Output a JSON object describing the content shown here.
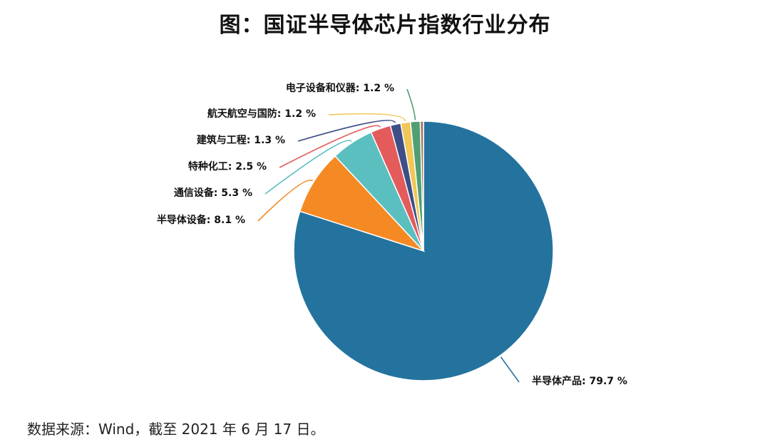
{
  "chart_data": {
    "type": "pie",
    "title": "图：国证半导体芯片指数行业分布",
    "slices": [
      {
        "name": "半导体产品",
        "value": 79.7,
        "label": "半导体产品: 79.7 %",
        "color": "#24739e"
      },
      {
        "name": "半导体设备",
        "value": 8.1,
        "label": "半导体设备: 8.1 %",
        "color": "#f58a24"
      },
      {
        "name": "通信设备",
        "value": 5.3,
        "label": "通信设备: 5.3 %",
        "color": "#5bbfc0"
      },
      {
        "name": "特种化工",
        "value": 2.5,
        "label": "特种化工: 2.5 %",
        "color": "#e35b5b"
      },
      {
        "name": "建筑与工程",
        "value": 1.3,
        "label": "建筑与工程: 1.3 %",
        "color": "#3e4e86"
      },
      {
        "name": "航天航空与国防",
        "value": 1.2,
        "label": "航天航空与国防: 1.2 %",
        "color": "#f1c758"
      },
      {
        "name": "电子设备和仪器",
        "value": 1.2,
        "label": "电子设备和仪器: 1.2 %",
        "color": "#4f9f72"
      },
      {
        "name": "",
        "value": 0.4,
        "label": "",
        "color": "#a8755e"
      }
    ]
  },
  "source": "数据来源：Wind，截至 2021 年 6 月 17 日。"
}
